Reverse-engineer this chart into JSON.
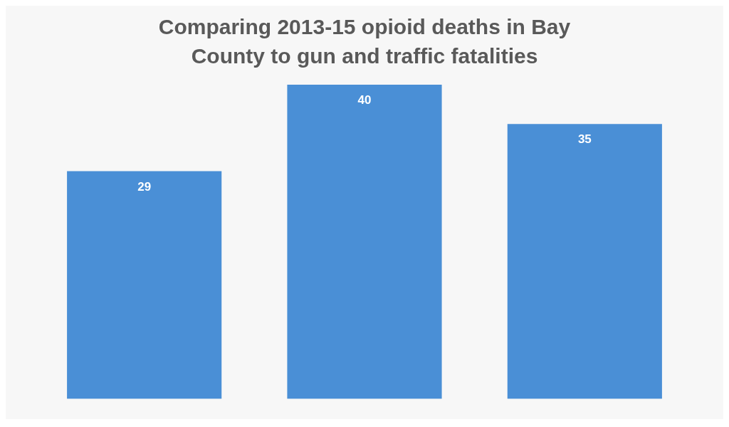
{
  "chart_data": {
    "type": "bar",
    "title": "Comparing 2013-15 opioid deaths in Bay County to gun and traffic fatalities",
    "categories": [
      null,
      null,
      null
    ],
    "values": [
      29,
      40,
      35
    ],
    "color": "#4a8fd6",
    "data_labels": true,
    "grid": false,
    "legend": false
  }
}
